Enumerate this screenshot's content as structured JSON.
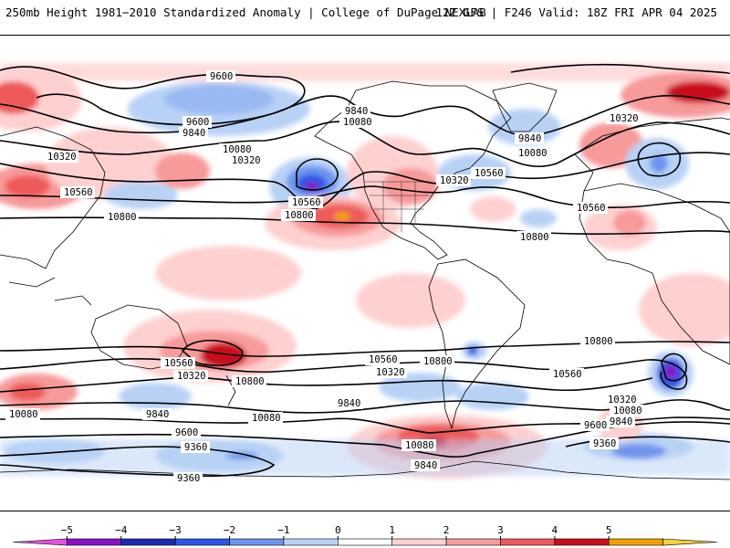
{
  "header": {
    "title": "250mb Height 1981−2010 Standardized Anomaly | College of DuPage NEXLAB",
    "valid": "12Z GFS | F246 Valid: 18Z FRI APR 04 2025"
  },
  "contour_labels": [
    {
      "text": "9600"
    },
    {
      "text": "9600"
    },
    {
      "text": "9840"
    },
    {
      "text": "10080"
    },
    {
      "text": "10320"
    },
    {
      "text": "10320"
    },
    {
      "text": "10560"
    },
    {
      "text": "10800"
    },
    {
      "text": "10560"
    },
    {
      "text": "10800"
    },
    {
      "text": "9840"
    },
    {
      "text": "10080"
    },
    {
      "text": "10320"
    },
    {
      "text": "10560"
    },
    {
      "text": "9840"
    },
    {
      "text": "10080"
    },
    {
      "text": "10320"
    },
    {
      "text": "10560"
    },
    {
      "text": "10800"
    },
    {
      "text": "10560"
    },
    {
      "text": "10320"
    },
    {
      "text": "10800"
    },
    {
      "text": "10080"
    },
    {
      "text": "9840"
    },
    {
      "text": "9600"
    },
    {
      "text": "9360"
    },
    {
      "text": "9360"
    },
    {
      "text": "10560"
    },
    {
      "text": "10320"
    },
    {
      "text": "10800"
    },
    {
      "text": "9840"
    },
    {
      "text": "10080"
    },
    {
      "text": "10080"
    },
    {
      "text": "9840"
    },
    {
      "text": "10800"
    },
    {
      "text": "10560"
    },
    {
      "text": "10320"
    },
    {
      "text": "10080"
    },
    {
      "text": "9840"
    },
    {
      "text": "9600"
    },
    {
      "text": "9360"
    }
  ],
  "colorbar": {
    "labels": [
      "−5",
      "−4",
      "−3",
      "−2",
      "−1",
      "0",
      "1",
      "2",
      "3",
      "4",
      "5"
    ],
    "colors": [
      "#e84fe0",
      "#8b10c8",
      "#1a2cb0",
      "#2b55e6",
      "#6c94ee",
      "#b8d2f6",
      "#ffffff",
      "#fed0d0",
      "#f79a9a",
      "#ee5a5a",
      "#c8101a",
      "#f2a000",
      "#f6d03c"
    ]
  },
  "legend_note": "standardized anomaly",
  "colors": {
    "frame": "#000000",
    "land_lines": "#000000"
  }
}
